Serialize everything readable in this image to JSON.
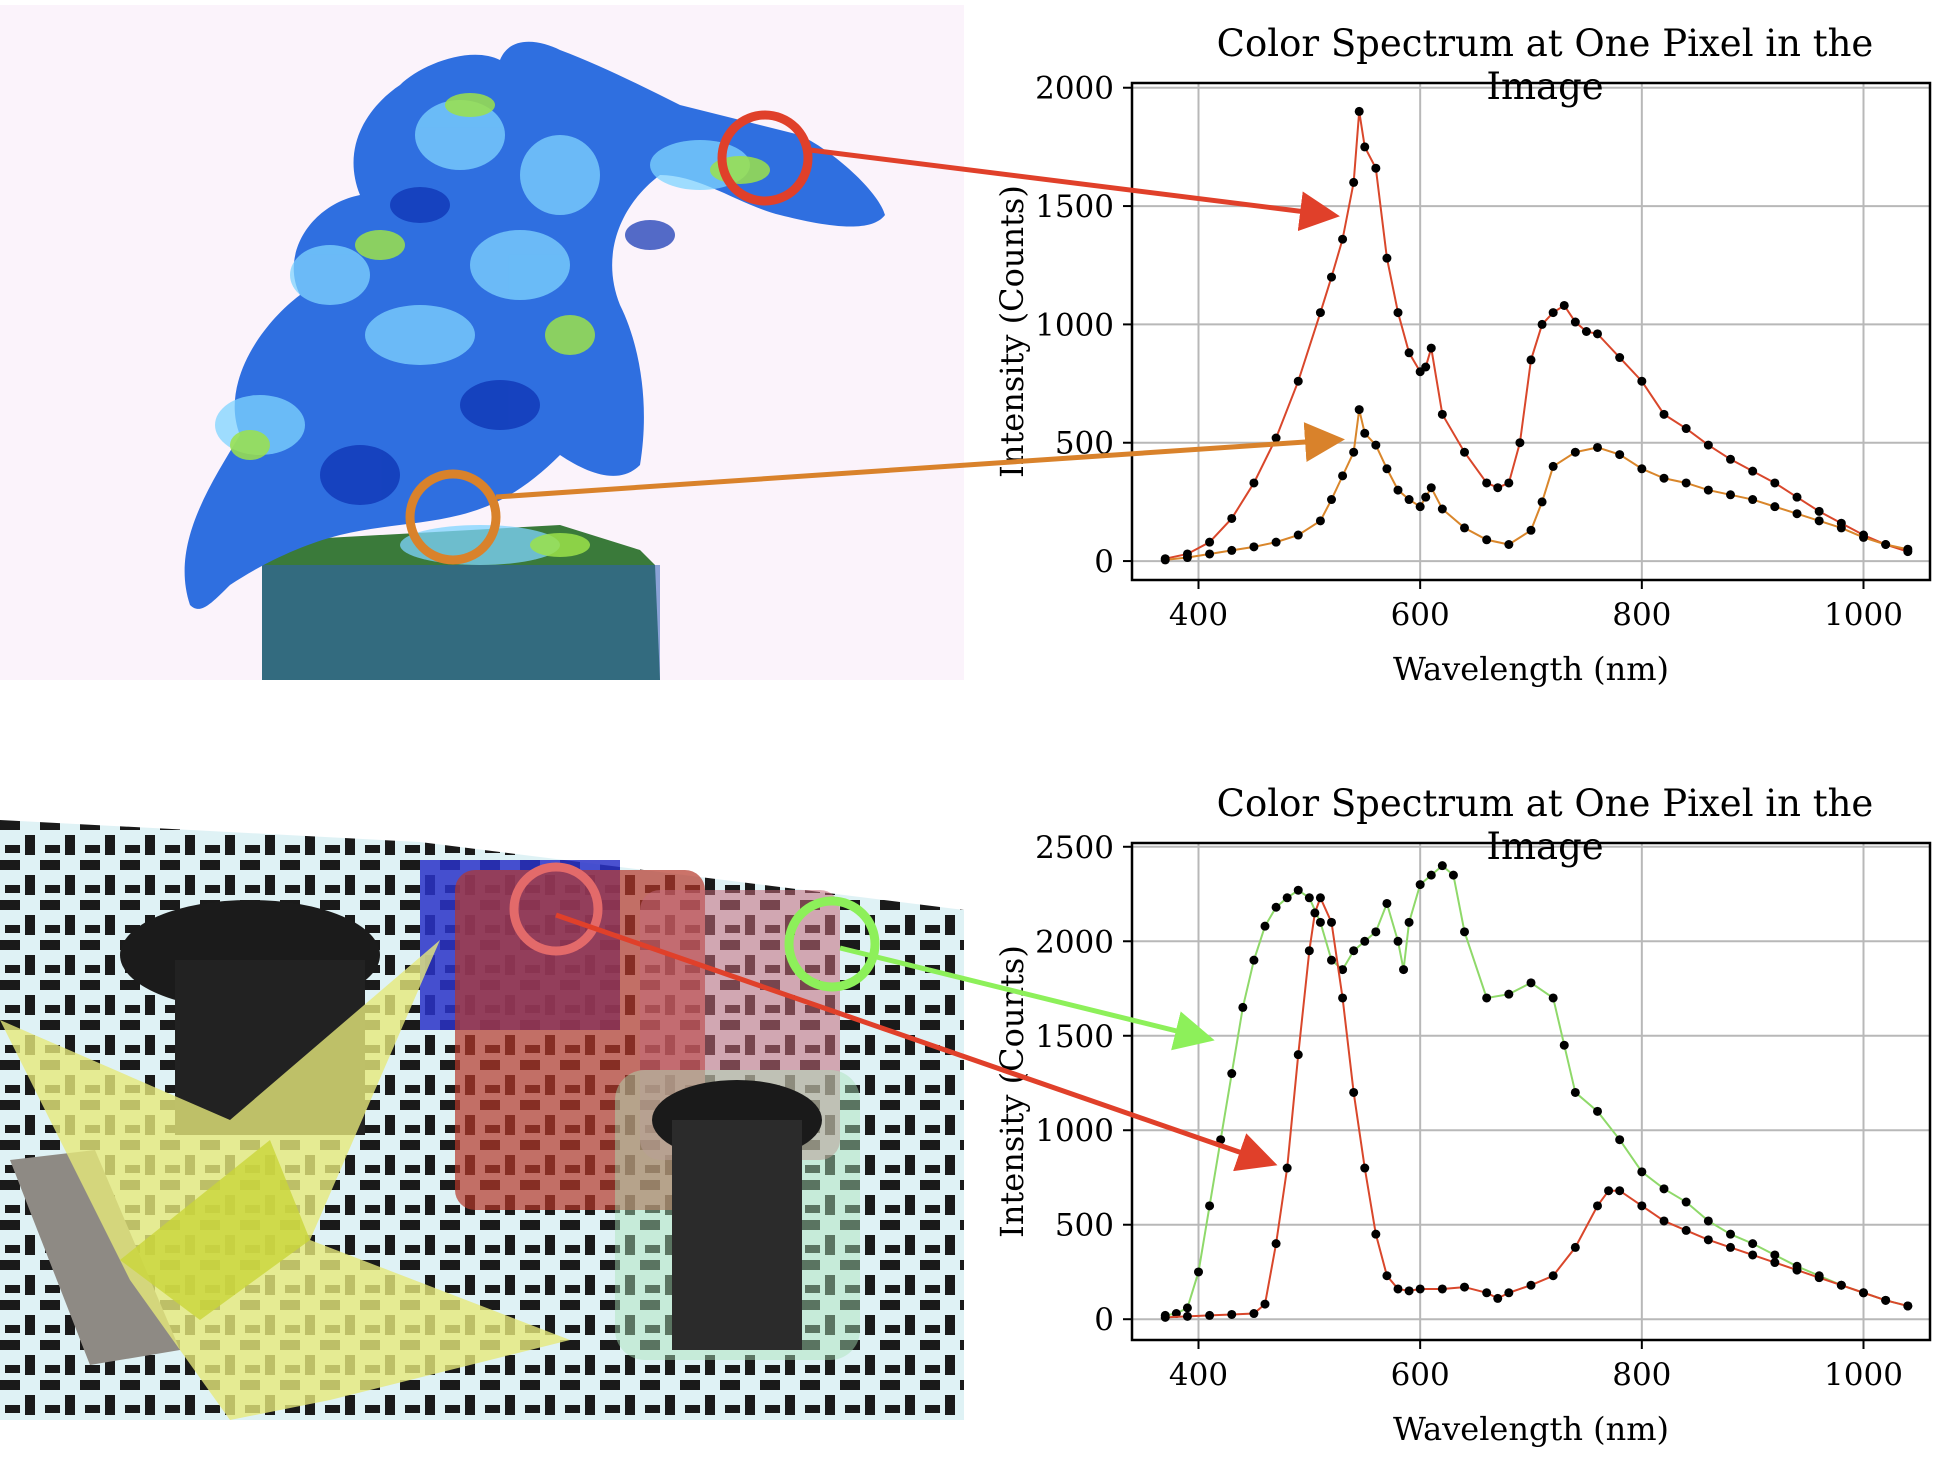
{
  "images": [
    {
      "name": "plant-false-color-image"
    },
    {
      "name": "transparent-objects-scene-image"
    }
  ],
  "chart_data": [
    {
      "type": "line",
      "title": "Color Spectrum at One Pixel in the Image",
      "xlabel": "Wavelength (nm)",
      "ylabel": "Intensity (Counts)",
      "xlim": [
        340,
        1060
      ],
      "ylim": [
        -80,
        2020
      ],
      "xticks": [
        400,
        600,
        800,
        1000
      ],
      "yticks": [
        0,
        500,
        1000,
        1500,
        2000
      ],
      "grid": true,
      "series": [
        {
          "color": "#d9472b",
          "x": [
            370,
            390,
            410,
            430,
            450,
            470,
            490,
            510,
            520,
            530,
            540,
            545,
            550,
            560,
            570,
            580,
            590,
            600,
            605,
            610,
            620,
            640,
            660,
            670,
            680,
            690,
            700,
            710,
            720,
            730,
            740,
            750,
            760,
            780,
            800,
            820,
            840,
            860,
            880,
            900,
            920,
            940,
            960,
            980,
            1000,
            1020,
            1040
          ],
          "values": [
            10,
            30,
            80,
            180,
            330,
            520,
            760,
            1050,
            1200,
            1360,
            1600,
            1900,
            1750,
            1660,
            1280,
            1050,
            880,
            800,
            820,
            900,
            620,
            460,
            330,
            310,
            330,
            500,
            850,
            1000,
            1050,
            1080,
            1010,
            970,
            960,
            860,
            760,
            620,
            560,
            490,
            430,
            380,
            330,
            270,
            210,
            160,
            110,
            70,
            40
          ]
        },
        {
          "color": "#d9862b",
          "x": [
            370,
            390,
            410,
            430,
            450,
            470,
            490,
            510,
            520,
            530,
            540,
            545,
            550,
            560,
            570,
            580,
            590,
            600,
            605,
            610,
            620,
            640,
            660,
            680,
            700,
            710,
            720,
            740,
            760,
            780,
            800,
            820,
            840,
            860,
            880,
            900,
            920,
            940,
            960,
            980,
            1000,
            1020,
            1040
          ],
          "values": [
            5,
            15,
            30,
            45,
            60,
            80,
            110,
            170,
            260,
            360,
            460,
            640,
            540,
            490,
            390,
            300,
            260,
            230,
            270,
            310,
            220,
            140,
            90,
            70,
            130,
            250,
            400,
            460,
            480,
            450,
            390,
            350,
            330,
            300,
            280,
            260,
            230,
            200,
            170,
            140,
            100,
            70,
            50
          ]
        }
      ]
    },
    {
      "type": "line",
      "title": "Color Spectrum at One Pixel in the Image",
      "xlabel": "Wavelength (nm)",
      "ylabel": "Intensity (Counts)",
      "xlim": [
        340,
        1060
      ],
      "ylim": [
        -110,
        2520
      ],
      "xticks": [
        400,
        600,
        800,
        1000
      ],
      "yticks": [
        0,
        500,
        1000,
        1500,
        2000,
        2500
      ],
      "grid": true,
      "series": [
        {
          "color": "#8fd96a",
          "x": [
            370,
            380,
            390,
            400,
            410,
            420,
            430,
            440,
            450,
            460,
            470,
            480,
            490,
            500,
            510,
            520,
            530,
            540,
            550,
            560,
            570,
            580,
            585,
            590,
            600,
            610,
            620,
            630,
            640,
            660,
            680,
            700,
            720,
            730,
            740,
            760,
            780,
            800,
            820,
            840,
            860,
            880,
            900,
            920,
            940,
            960,
            980,
            1000,
            1020,
            1040
          ],
          "values": [
            20,
            30,
            60,
            250,
            600,
            950,
            1300,
            1650,
            1900,
            2080,
            2180,
            2230,
            2270,
            2230,
            2100,
            1900,
            1850,
            1950,
            2000,
            2050,
            2200,
            2000,
            1850,
            2100,
            2300,
            2350,
            2400,
            2350,
            2050,
            1700,
            1720,
            1780,
            1700,
            1450,
            1200,
            1100,
            950,
            780,
            690,
            620,
            520,
            450,
            400,
            340,
            280,
            230,
            180,
            140,
            100,
            70
          ]
        },
        {
          "color": "#d9472b",
          "x": [
            370,
            390,
            410,
            430,
            450,
            460,
            470,
            480,
            490,
            500,
            505,
            510,
            520,
            530,
            540,
            550,
            560,
            570,
            580,
            590,
            600,
            620,
            640,
            660,
            670,
            680,
            700,
            720,
            740,
            760,
            770,
            780,
            800,
            820,
            840,
            860,
            880,
            900,
            920,
            940,
            960,
            980,
            1000,
            1020,
            1040
          ],
          "values": [
            10,
            15,
            20,
            25,
            30,
            80,
            400,
            800,
            1400,
            1950,
            2150,
            2230,
            2100,
            1700,
            1200,
            800,
            450,
            230,
            160,
            150,
            160,
            160,
            170,
            140,
            110,
            140,
            180,
            230,
            380,
            600,
            680,
            680,
            600,
            520,
            470,
            420,
            380,
            340,
            300,
            260,
            220,
            180,
            140,
            100,
            70
          ]
        }
      ]
    }
  ]
}
